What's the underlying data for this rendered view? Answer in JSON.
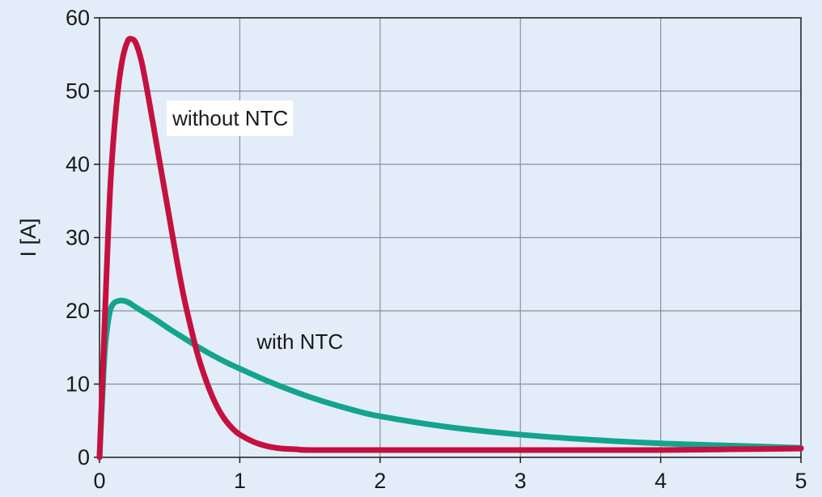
{
  "chart_data": {
    "type": "line",
    "title": "",
    "xlabel": "",
    "ylabel": "I [A]",
    "xlim": [
      0,
      5
    ],
    "ylim": [
      0,
      60
    ],
    "x_ticks": [
      "0",
      "1",
      "2",
      "3",
      "4",
      "5"
    ],
    "y_ticks": [
      "0",
      "10",
      "20",
      "30",
      "40",
      "50",
      "60"
    ],
    "grid": true,
    "background_color": "#e3edf9",
    "series": [
      {
        "name": "without NTC",
        "color": "#c4113f",
        "x": [
          0,
          0.02,
          0.05,
          0.08,
          0.12,
          0.16,
          0.2,
          0.23,
          0.26,
          0.3,
          0.35,
          0.4,
          0.45,
          0.5,
          0.55,
          0.6,
          0.65,
          0.7,
          0.75,
          0.8,
          0.85,
          0.9,
          0.95,
          1.0,
          1.1,
          1.2,
          1.3,
          1.4,
          1.5,
          2.0,
          2.5,
          3.0,
          3.5,
          4.0,
          4.5,
          5.0
        ],
        "y": [
          0,
          10,
          25,
          38,
          48,
          54,
          56.8,
          57.1,
          56.5,
          54,
          49,
          43.5,
          38,
          32.5,
          27,
          22,
          17.8,
          14,
          11,
          8.5,
          6.5,
          5,
          3.9,
          3.1,
          2.1,
          1.5,
          1.2,
          1.1,
          1.0,
          1.0,
          1.0,
          1.0,
          1.0,
          1.0,
          1.1,
          1.2
        ]
      },
      {
        "name": "with NTC",
        "color": "#14a48e",
        "x": [
          0,
          0.02,
          0.04,
          0.07,
          0.1,
          0.15,
          0.2,
          0.25,
          0.3,
          0.4,
          0.5,
          0.6,
          0.7,
          0.8,
          0.9,
          1.0,
          1.2,
          1.4,
          1.6,
          1.8,
          2.0,
          2.5,
          3.0,
          3.5,
          4.0,
          4.5,
          5.0
        ],
        "y": [
          0,
          8,
          15,
          19.5,
          21,
          21.4,
          21.2,
          20.6,
          20,
          18.8,
          17.5,
          16.3,
          15.1,
          14,
          13,
          12.1,
          10.4,
          8.9,
          7.6,
          6.5,
          5.6,
          4.1,
          3.1,
          2.4,
          1.9,
          1.6,
          1.3
        ]
      }
    ],
    "annotations": [
      {
        "text": "without NTC",
        "x": 0.52,
        "y": 45.3,
        "boxed": true
      },
      {
        "text": "with NTC",
        "x": 1.12,
        "y": 14.8,
        "boxed": false
      }
    ]
  }
}
